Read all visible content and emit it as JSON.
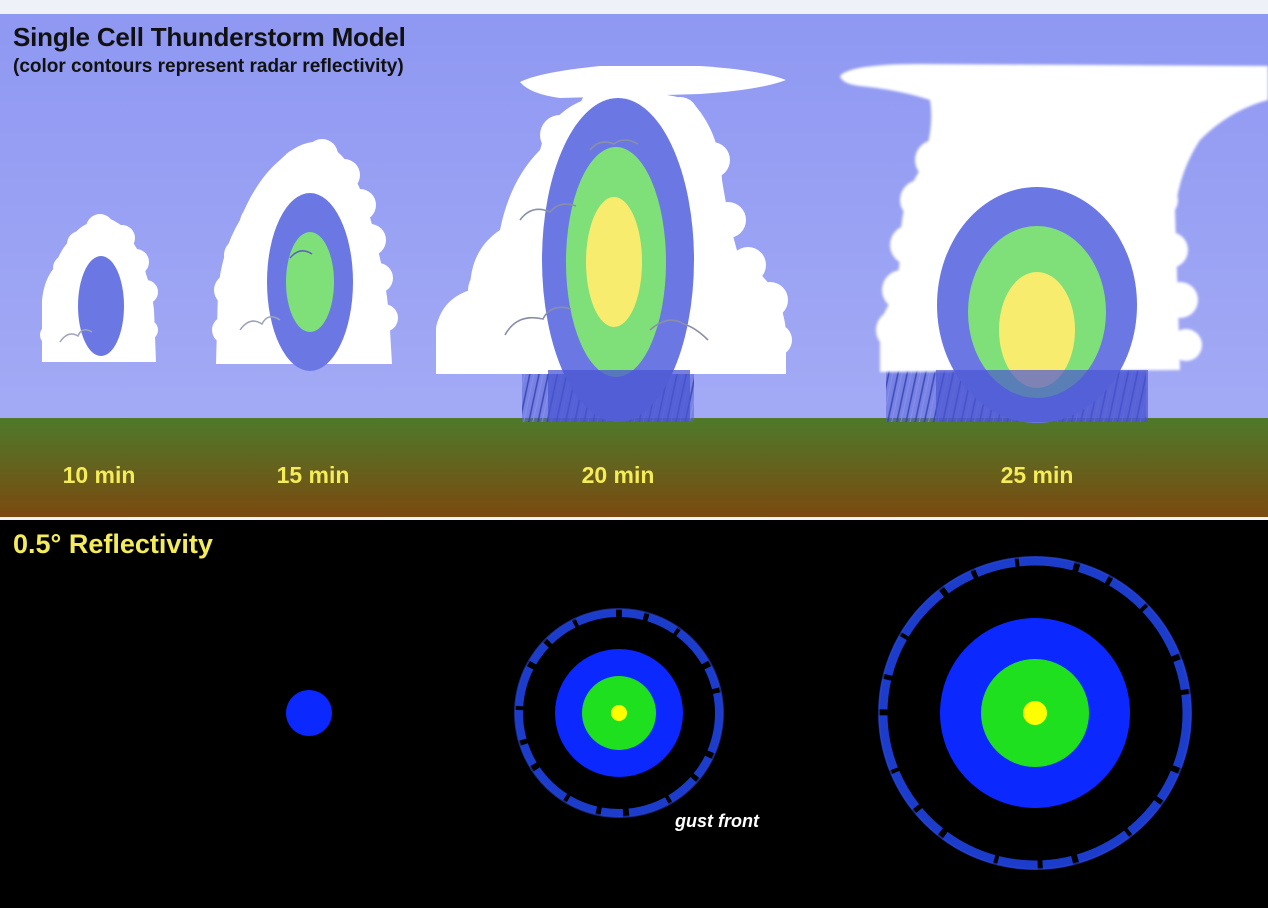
{
  "header": {
    "title": "Single Cell Thunderstorm Model",
    "subtitle": "(color contours represent radar reflectivity)"
  },
  "stages": [
    {
      "label": "10 min"
    },
    {
      "label": "15 min"
    },
    {
      "label": "20 min"
    },
    {
      "label": "25 min"
    }
  ],
  "radar": {
    "title": "0.5° Reflectivity",
    "gust_label": "gust front"
  },
  "colors": {
    "sky": "#9aa2f4",
    "cloud": "#ffffff",
    "ground_top": "#4e7a2a",
    "ground_bottom": "#7a4a10",
    "low_reflectivity": "#6b78e4",
    "mid_reflectivity": "#7fe07a",
    "high_reflectivity": "#f8ec6e",
    "radar_blue": "#0a28ff",
    "radar_green": "#1ee01e",
    "radar_yellow": "#ffff00",
    "label_yellow": "#f5ec5a",
    "radar_bg": "#000000"
  }
}
